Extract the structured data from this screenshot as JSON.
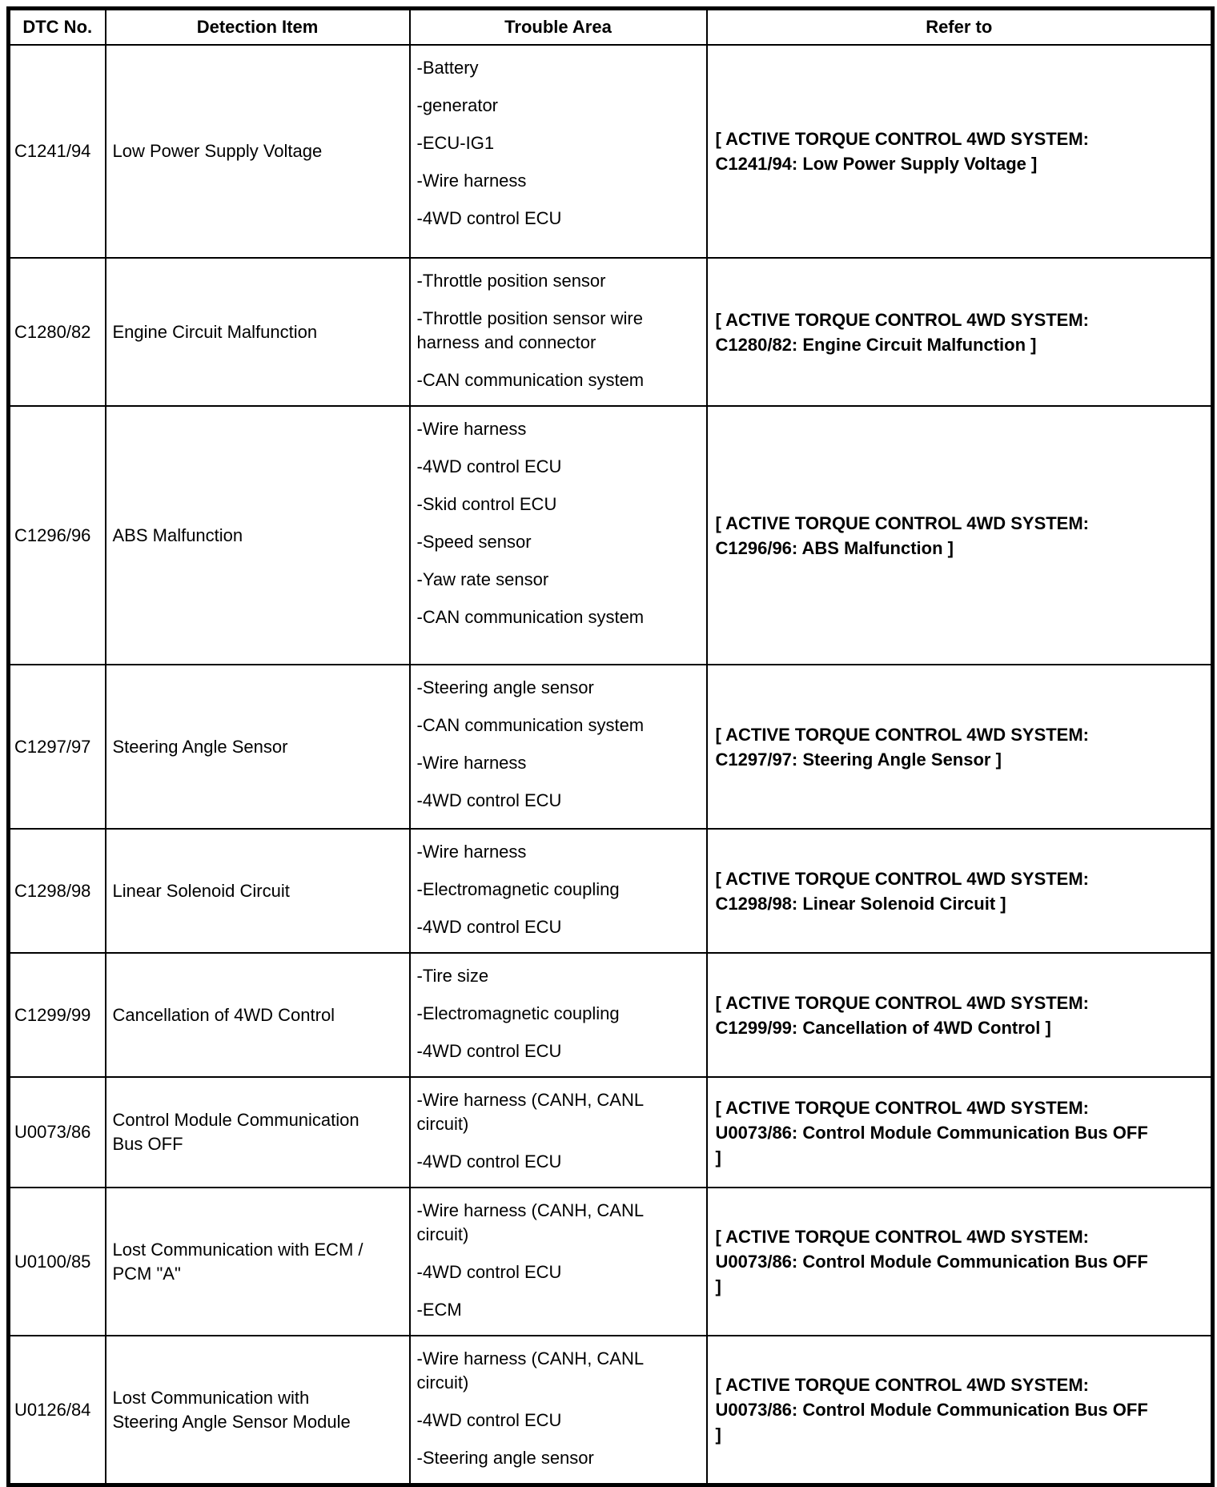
{
  "table": {
    "headers": [
      "DTC No.",
      "Detection Item",
      "Trouble Area",
      "Refer to"
    ],
    "rows": [
      {
        "dtc": "C1241/94",
        "detection": "Low Power Supply Voltage",
        "trouble": [
          "-Battery",
          "-generator",
          "-ECU-IG1",
          "-Wire harness",
          "-4WD control ECU"
        ],
        "refer": "[ ACTIVE TORQUE CONTROL 4WD SYSTEM:\nC1241/94: Low Power Supply Voltage ]"
      },
      {
        "dtc": "C1280/82",
        "detection": "Engine Circuit Malfunction",
        "trouble": [
          "-Throttle position sensor",
          "-Throttle position sensor wire\nharness and connector",
          "-CAN communication system"
        ],
        "refer": "[ ACTIVE TORQUE CONTROL 4WD SYSTEM:\nC1280/82: Engine Circuit Malfunction ]"
      },
      {
        "dtc": "C1296/96",
        "detection": "ABS Malfunction",
        "trouble": [
          "-Wire harness",
          "-4WD control ECU",
          "-Skid control ECU",
          "-Speed sensor",
          "-Yaw rate sensor",
          "-CAN communication system"
        ],
        "refer": "[ ACTIVE TORQUE CONTROL 4WD SYSTEM:\nC1296/96: ABS Malfunction ]"
      },
      {
        "dtc": "C1297/97",
        "detection": "Steering Angle Sensor",
        "trouble": [
          "-Steering angle sensor",
          "-CAN communication system",
          "-Wire harness",
          "-4WD control ECU"
        ],
        "refer": "[ ACTIVE TORQUE CONTROL 4WD SYSTEM:\nC1297/97: Steering Angle Sensor ]"
      },
      {
        "dtc": "C1298/98",
        "detection": "Linear Solenoid Circuit",
        "trouble": [
          "-Wire harness",
          "-Electromagnetic coupling",
          "-4WD control ECU"
        ],
        "refer": "[ ACTIVE TORQUE CONTROL 4WD SYSTEM:\nC1298/98: Linear Solenoid Circuit ]"
      },
      {
        "dtc": "C1299/99",
        "detection": "Cancellation of 4WD Control",
        "trouble": [
          "-Tire size",
          "-Electromagnetic coupling",
          "-4WD control ECU"
        ],
        "refer": "[ ACTIVE TORQUE CONTROL 4WD SYSTEM:\nC1299/99: Cancellation of 4WD Control ]"
      },
      {
        "dtc": "U0073/86",
        "detection": "Control Module Communication\nBus OFF",
        "trouble": [
          "-Wire harness (CANH, CANL\ncircuit)",
          "-4WD control ECU"
        ],
        "refer": "[ ACTIVE TORQUE CONTROL 4WD SYSTEM:\nU0073/86: Control Module Communication Bus OFF\n]"
      },
      {
        "dtc": "U0100/85",
        "detection": "Lost Communication with ECM /\nPCM \"A\"",
        "trouble": [
          "-Wire harness (CANH, CANL\ncircuit)",
          "-4WD control ECU",
          "-ECM"
        ],
        "refer": "[ ACTIVE TORQUE CONTROL 4WD SYSTEM:\nU0073/86: Control Module Communication Bus OFF\n]"
      },
      {
        "dtc": "U0126/84",
        "detection": "Lost Communication with\nSteering Angle Sensor Module",
        "trouble": [
          "-Wire harness (CANH, CANL\ncircuit)",
          "-4WD control ECU",
          "-Steering angle sensor"
        ],
        "refer": "[ ACTIVE TORQUE CONTROL 4WD SYSTEM:\nU0073/86: Control Module Communication Bus OFF\n]"
      }
    ]
  }
}
